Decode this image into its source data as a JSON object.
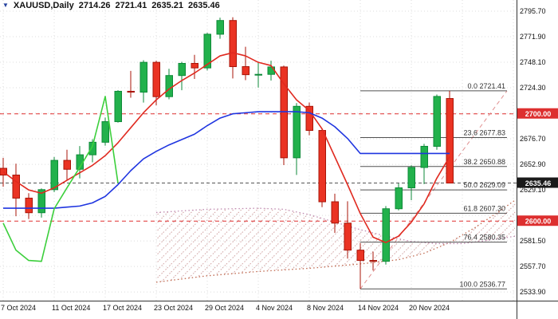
{
  "title": {
    "symbol": "XAUUSD,Daily",
    "open": "2714.26",
    "high": "2721.41",
    "low": "2635.21",
    "close": "2635.46"
  },
  "colors": {
    "bull_fill": "#22b14c",
    "bull_border": "#0e8a38",
    "bear_fill": "#ea3323",
    "bear_border": "#a81408",
    "red_line": "#e02a20",
    "blue_line": "#1f35e0",
    "green_line": "#3ccf3c",
    "senkou_a": "#c06a50",
    "senkou_b": "#c08ab0",
    "fib_line": "#505050",
    "fib_diag": "#e09090",
    "hline": "#e03030",
    "price_line": "#555555",
    "grid": "#dcdcdc",
    "axis_text": "#111111",
    "axis_border": "#333333"
  },
  "y_axis": {
    "ticks": [
      {
        "label": "2795.70",
        "value": 2795.7
      },
      {
        "label": "2771.90",
        "value": 2771.9
      },
      {
        "label": "2748.10",
        "value": 2748.1
      },
      {
        "label": "2724.30",
        "value": 2724.3
      },
      {
        "label": "2676.70",
        "value": 2676.7
      },
      {
        "label": "2652.90",
        "value": 2652.9
      },
      {
        "label": "2629.10",
        "value": 2629.1
      },
      {
        "label": "2581.50",
        "value": 2581.5
      },
      {
        "label": "2557.70",
        "value": 2557.7
      },
      {
        "label": "2533.90",
        "value": 2533.9
      }
    ],
    "grid_prices": [
      2795.7,
      2771.9,
      2748.1,
      2724.3,
      2700.5,
      2676.7,
      2652.9,
      2629.1,
      2605.3,
      2581.5,
      2557.7,
      2533.9
    ],
    "badges": [
      {
        "label": "2700.00",
        "value": 2700.0,
        "bg": "#dd2f2f"
      },
      {
        "label": "2635.46",
        "value": 2635.46,
        "bg": "#1a1a1a"
      },
      {
        "label": "2600.00",
        "value": 2600.0,
        "bg": "#dd2f2f"
      }
    ]
  },
  "x_axis": {
    "labels": [
      {
        "text": "7 Oct 2024",
        "bar": 0
      },
      {
        "text": "11 Oct 2024",
        "bar": 4
      },
      {
        "text": "17 Oct 2024",
        "bar": 8
      },
      {
        "text": "23 Oct 2024",
        "bar": 12
      },
      {
        "text": "29 Oct 2024",
        "bar": 16
      },
      {
        "text": "4 Nov 2024",
        "bar": 20
      },
      {
        "text": "8 Nov 2024",
        "bar": 24
      },
      {
        "text": "14 Nov 2024",
        "bar": 28
      },
      {
        "text": "20 Nov 2024",
        "bar": 32
      }
    ]
  },
  "chart_data": {
    "type": "candlestick",
    "symbol": "XAUUSD",
    "timeframe": "Daily",
    "ylim": [
      2533.9,
      2795.7
    ],
    "ohlc": [
      {
        "date": "7 Oct",
        "o": 2649.2,
        "h": 2659.0,
        "l": 2632.0,
        "c": 2642.9
      },
      {
        "date": "8 Oct",
        "o": 2642.9,
        "h": 2653.5,
        "l": 2604.5,
        "c": 2621.4
      },
      {
        "date": "9 Oct",
        "o": 2621.4,
        "h": 2626.0,
        "l": 2601.9,
        "c": 2607.8
      },
      {
        "date": "10 Oct",
        "o": 2607.8,
        "h": 2630.5,
        "l": 2603.2,
        "c": 2629.3
      },
      {
        "date": "11 Oct",
        "o": 2629.3,
        "h": 2659.7,
        "l": 2627.0,
        "c": 2656.6
      },
      {
        "date": "14 Oct",
        "o": 2656.6,
        "h": 2666.5,
        "l": 2638.3,
        "c": 2648.3
      },
      {
        "date": "15 Oct",
        "o": 2648.3,
        "h": 2670.0,
        "l": 2639.8,
        "c": 2661.8
      },
      {
        "date": "16 Oct",
        "o": 2661.8,
        "h": 2676.3,
        "l": 2654.8,
        "c": 2673.5
      },
      {
        "date": "17 Oct",
        "o": 2673.5,
        "h": 2696.5,
        "l": 2670.3,
        "c": 2692.7
      },
      {
        "date": "18 Oct",
        "o": 2692.7,
        "h": 2722.0,
        "l": 2691.8,
        "c": 2721.0
      },
      {
        "date": "21 Oct",
        "o": 2721.0,
        "h": 2740.0,
        "l": 2715.0,
        "c": 2720.2
      },
      {
        "date": "22 Oct",
        "o": 2720.2,
        "h": 2750.0,
        "l": 2710.5,
        "c": 2748.0
      },
      {
        "date": "23 Oct",
        "o": 2748.0,
        "h": 2749.5,
        "l": 2708.0,
        "c": 2716.0
      },
      {
        "date": "24 Oct",
        "o": 2716.0,
        "h": 2742.0,
        "l": 2713.5,
        "c": 2735.7
      },
      {
        "date": "25 Oct",
        "o": 2735.7,
        "h": 2748.5,
        "l": 2722.0,
        "c": 2747.0
      },
      {
        "date": "28 Oct",
        "o": 2747.0,
        "h": 2755.0,
        "l": 2732.5,
        "c": 2742.8
      },
      {
        "date": "29 Oct",
        "o": 2742.8,
        "h": 2775.5,
        "l": 2740.5,
        "c": 2774.2
      },
      {
        "date": "30 Oct",
        "o": 2774.2,
        "h": 2789.7,
        "l": 2770.0,
        "c": 2787.0
      },
      {
        "date": "31 Oct",
        "o": 2787.0,
        "h": 2790.0,
        "l": 2733.0,
        "c": 2744.0
      },
      {
        "date": "1 Nov",
        "o": 2744.0,
        "h": 2762.5,
        "l": 2731.4,
        "c": 2736.5
      },
      {
        "date": "4 Nov",
        "o": 2736.5,
        "h": 2748.5,
        "l": 2724.5,
        "c": 2736.8
      },
      {
        "date": "5 Nov",
        "o": 2736.8,
        "h": 2749.5,
        "l": 2731.0,
        "c": 2743.7
      },
      {
        "date": "6 Nov",
        "o": 2743.7,
        "h": 2745.0,
        "l": 2652.2,
        "c": 2659.0
      },
      {
        "date": "7 Nov",
        "o": 2659.0,
        "h": 2710.0,
        "l": 2643.0,
        "c": 2707.0
      },
      {
        "date": "8 Nov",
        "o": 2707.0,
        "h": 2710.5,
        "l": 2680.0,
        "c": 2684.5
      },
      {
        "date": "11 Nov",
        "o": 2684.5,
        "h": 2686.0,
        "l": 2613.0,
        "c": 2618.0
      },
      {
        "date": "12 Nov",
        "o": 2618.0,
        "h": 2625.5,
        "l": 2589.0,
        "c": 2598.1
      },
      {
        "date": "13 Nov",
        "o": 2598.1,
        "h": 2618.5,
        "l": 2565.0,
        "c": 2572.9
      },
      {
        "date": "14 Nov",
        "o": 2572.9,
        "h": 2579.5,
        "l": 2536.8,
        "c": 2563.3
      },
      {
        "date": "15 Nov",
        "o": 2563.3,
        "h": 2571.5,
        "l": 2554.0,
        "c": 2562.5
      },
      {
        "date": "18 Nov",
        "o": 2562.5,
        "h": 2614.0,
        "l": 2559.5,
        "c": 2611.5
      },
      {
        "date": "19 Nov",
        "o": 2611.5,
        "h": 2635.0,
        "l": 2610.0,
        "c": 2631.0
      },
      {
        "date": "20 Nov",
        "o": 2631.0,
        "h": 2652.0,
        "l": 2619.5,
        "c": 2650.0
      },
      {
        "date": "21 Nov",
        "o": 2650.0,
        "h": 2672.0,
        "l": 2634.5,
        "c": 2669.7
      },
      {
        "date": "22 Nov",
        "o": 2669.7,
        "h": 2718.0,
        "l": 2666.5,
        "c": 2716.2
      },
      {
        "date": "25 Nov",
        "o": 2714.26,
        "h": 2721.41,
        "l": 2635.21,
        "c": 2635.46
      }
    ],
    "indicators": {
      "red_line": [
        2646,
        2637,
        2629,
        2626,
        2631,
        2638,
        2645,
        2652,
        2661,
        2673,
        2687,
        2701,
        2713,
        2723,
        2731,
        2738,
        2746,
        2754,
        2757,
        2754,
        2748,
        2745,
        2728,
        2713,
        2703,
        2686,
        2660,
        2634,
        2607,
        2585,
        2580,
        2586,
        2599,
        2616,
        2640,
        2660
      ],
      "blue_line": [
        2612,
        2612,
        2612,
        2612,
        2612,
        2613,
        2614,
        2617,
        2623,
        2634,
        2647,
        2658,
        2665,
        2671,
        2676,
        2681,
        2689,
        2696,
        2700,
        2701,
        2702,
        2702,
        2702,
        2702,
        2701,
        2696,
        2688,
        2677,
        2663,
        2663,
        2663,
        2663,
        2663,
        2663,
        2663,
        2663
      ],
      "green_chikou": {
        "start_bar": 0,
        "values": [
          2598.1,
          2572.9,
          2563.3,
          2562.5,
          2611.5,
          2631.0,
          2650.0,
          2669.7,
          2716.2,
          2635.5
        ]
      },
      "senkou_a_dotted": {
        "points": [
          [
            12,
            2543
          ],
          [
            16,
            2549
          ],
          [
            20,
            2553
          ],
          [
            24,
            2556
          ],
          [
            28,
            2560
          ],
          [
            31,
            2564
          ],
          [
            33,
            2570
          ],
          [
            35,
            2580
          ],
          [
            37,
            2594
          ],
          [
            39,
            2610
          ],
          [
            40.2,
            2620
          ]
        ]
      },
      "senkou_b_dotted": {
        "points": [
          [
            12,
            2608
          ],
          [
            16,
            2611
          ],
          [
            20,
            2612
          ],
          [
            22,
            2611
          ],
          [
            24,
            2606
          ],
          [
            26,
            2599
          ],
          [
            28,
            2592
          ],
          [
            30,
            2586
          ],
          [
            32,
            2581
          ],
          [
            34,
            2579
          ],
          [
            36,
            2579
          ],
          [
            38,
            2582
          ],
          [
            40.2,
            2586
          ]
        ]
      }
    },
    "fibonacci": {
      "start_bar": 28,
      "end_bar": 39.5,
      "levels": [
        {
          "pct": "0.0",
          "label": "2721.41",
          "value": 2721.41
        },
        {
          "pct": "23.6",
          "label": "2677.83",
          "value": 2677.83
        },
        {
          "pct": "38.2",
          "label": "2650.88",
          "value": 2650.88
        },
        {
          "pct": "50.0",
          "label": "2629.09",
          "value": 2629.09
        },
        {
          "pct": "61.8",
          "label": "2607.30",
          "value": 2607.3
        },
        {
          "pct": "76.4",
          "label": "2580.35",
          "value": 2580.35
        },
        {
          "pct": "100.0",
          "label": "2536.77",
          "value": 2536.77
        }
      ]
    },
    "hlines": [
      {
        "label": "2700.00",
        "value": 2700.0
      },
      {
        "label": "2600.00",
        "value": 2600.0
      }
    ],
    "price_line": {
      "label": "2635.46",
      "value": 2635.46
    }
  }
}
